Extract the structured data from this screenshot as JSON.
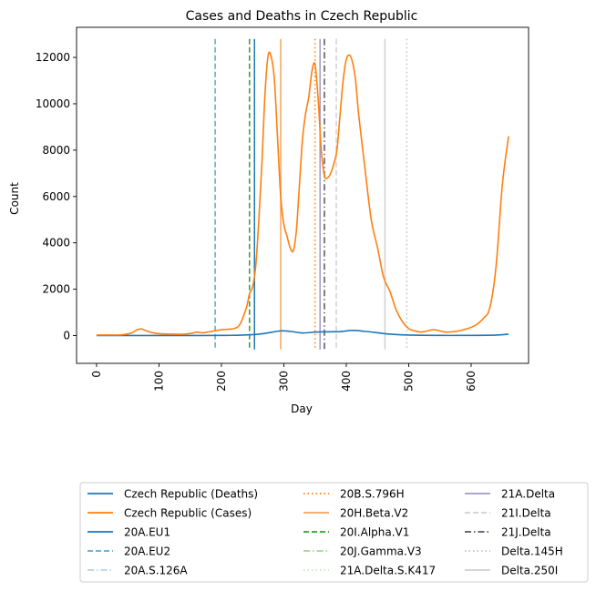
{
  "chart_data": {
    "type": "line",
    "title": "Cases and Deaths in Czech Republic",
    "xlabel": "Day",
    "ylabel": "Count",
    "xlim": [
      -32,
      692
    ],
    "ylim": [
      -1200,
      13300
    ],
    "xticks": [
      0,
      100,
      200,
      300,
      400,
      500,
      600
    ],
    "yticks": [
      0,
      2000,
      4000,
      6000,
      8000,
      10000,
      12000
    ],
    "xtick_labels": [
      "0",
      "100",
      "200",
      "300",
      "400",
      "500",
      "600"
    ],
    "ytick_labels": [
      "0",
      "2000",
      "4000",
      "6000",
      "8000",
      "10000",
      "12000"
    ],
    "grid": false,
    "legend_placement": "below plot, 3 columns",
    "series": [
      {
        "name": "Czech Republic (Deaths)",
        "color": "#1f77b4",
        "x": [
          0,
          50,
          100,
          150,
          200,
          230,
          260,
          280,
          295,
          310,
          330,
          350,
          370,
          390,
          410,
          430,
          450,
          470,
          500,
          550,
          600,
          640,
          660
        ],
        "y": [
          0,
          0,
          0,
          0,
          5,
          15,
          60,
          140,
          200,
          180,
          110,
          150,
          160,
          170,
          220,
          180,
          120,
          60,
          20,
          5,
          5,
          20,
          60
        ]
      },
      {
        "name": "Czech Republic (Cases)",
        "color": "#ff7f0e",
        "x": [
          0,
          20,
          40,
          55,
          65,
          72,
          80,
          90,
          100,
          120,
          140,
          155,
          160,
          170,
          180,
          200,
          220,
          230,
          240,
          245,
          250,
          255,
          260,
          265,
          270,
          275,
          280,
          285,
          290,
          295,
          300,
          305,
          310,
          315,
          320,
          325,
          330,
          335,
          340,
          345,
          350,
          355,
          360,
          365,
          370,
          375,
          380,
          385,
          390,
          395,
          400,
          405,
          410,
          415,
          420,
          430,
          440,
          450,
          460,
          470,
          480,
          490,
          500,
          510,
          520,
          530,
          540,
          550,
          560,
          580,
          600,
          610,
          620,
          630,
          640,
          650,
          660
        ],
        "y": [
          20,
          20,
          30,
          100,
          250,
          280,
          200,
          120,
          80,
          60,
          60,
          110,
          150,
          120,
          160,
          250,
          300,
          500,
          1200,
          1800,
          2100,
          3000,
          5000,
          7500,
          10500,
          12100,
          12000,
          11000,
          8500,
          6000,
          4800,
          4300,
          3800,
          3650,
          4500,
          6500,
          8500,
          9600,
          10300,
          11400,
          11700,
          10200,
          8000,
          6900,
          6800,
          7000,
          7400,
          8000,
          9500,
          11000,
          11900,
          12100,
          11800,
          11000,
          9500,
          7200,
          5000,
          3800,
          2500,
          1900,
          1100,
          600,
          300,
          200,
          150,
          200,
          250,
          200,
          150,
          200,
          350,
          500,
          750,
          1200,
          3000,
          6500,
          8600
        ]
      }
    ],
    "vlines": [
      {
        "name": "20A.EU1",
        "x": 253,
        "color": "#1f77b4",
        "dash": "solid",
        "legend_marker": "solid"
      },
      {
        "name": "20A.EU2",
        "x": 190,
        "color": "#5fa8c8",
        "dash": "dashed",
        "legend_marker": "dashed"
      },
      {
        "name": "20A.S.126A",
        "x": null,
        "color": "#b8d4e8",
        "dash": "dashdot",
        "legend_marker": "dashdot"
      },
      {
        "name": "20B.S.796H",
        "x": 350,
        "color": "#ff7f0e",
        "dash": "dotted",
        "legend_marker": "dotted"
      },
      {
        "name": "20H.Beta.V2",
        "x": 295,
        "color": "#f5a55a",
        "dash": "solid",
        "legend_marker": "solid"
      },
      {
        "name": "20I.Alpha.V1",
        "x": 245,
        "color": "#2ca02c",
        "dash": "dashed",
        "legend_marker": "dashed"
      },
      {
        "name": "20J.Gamma.V3",
        "x": null,
        "color": "#98df8a",
        "dash": "dashdot",
        "legend_marker": "dashdot"
      },
      {
        "name": "21A.Delta.S.K417",
        "x": null,
        "color": "#c7e9c0",
        "dash": "dotted",
        "legend_marker": "dotted"
      },
      {
        "name": "21A.Delta",
        "x": 358,
        "color": "#9e9ac8",
        "dash": "solid",
        "legend_marker": "solid"
      },
      {
        "name": "21I.Delta",
        "x": 384,
        "color": "#d0d0d0",
        "dash": "dashed",
        "legend_marker": "dashed"
      },
      {
        "name": "21J.Delta",
        "x": 365,
        "color": "#555566",
        "dash": "dashdot",
        "legend_marker": "dashdot"
      },
      {
        "name": "Delta.145H",
        "x": 497,
        "color": "#c0c0c0",
        "dash": "dotted",
        "legend_marker": "dotted"
      },
      {
        "name": "Delta.250I",
        "x": 462,
        "color": "#d0d0d0",
        "dash": "solid",
        "legend_marker": "solid"
      }
    ]
  }
}
